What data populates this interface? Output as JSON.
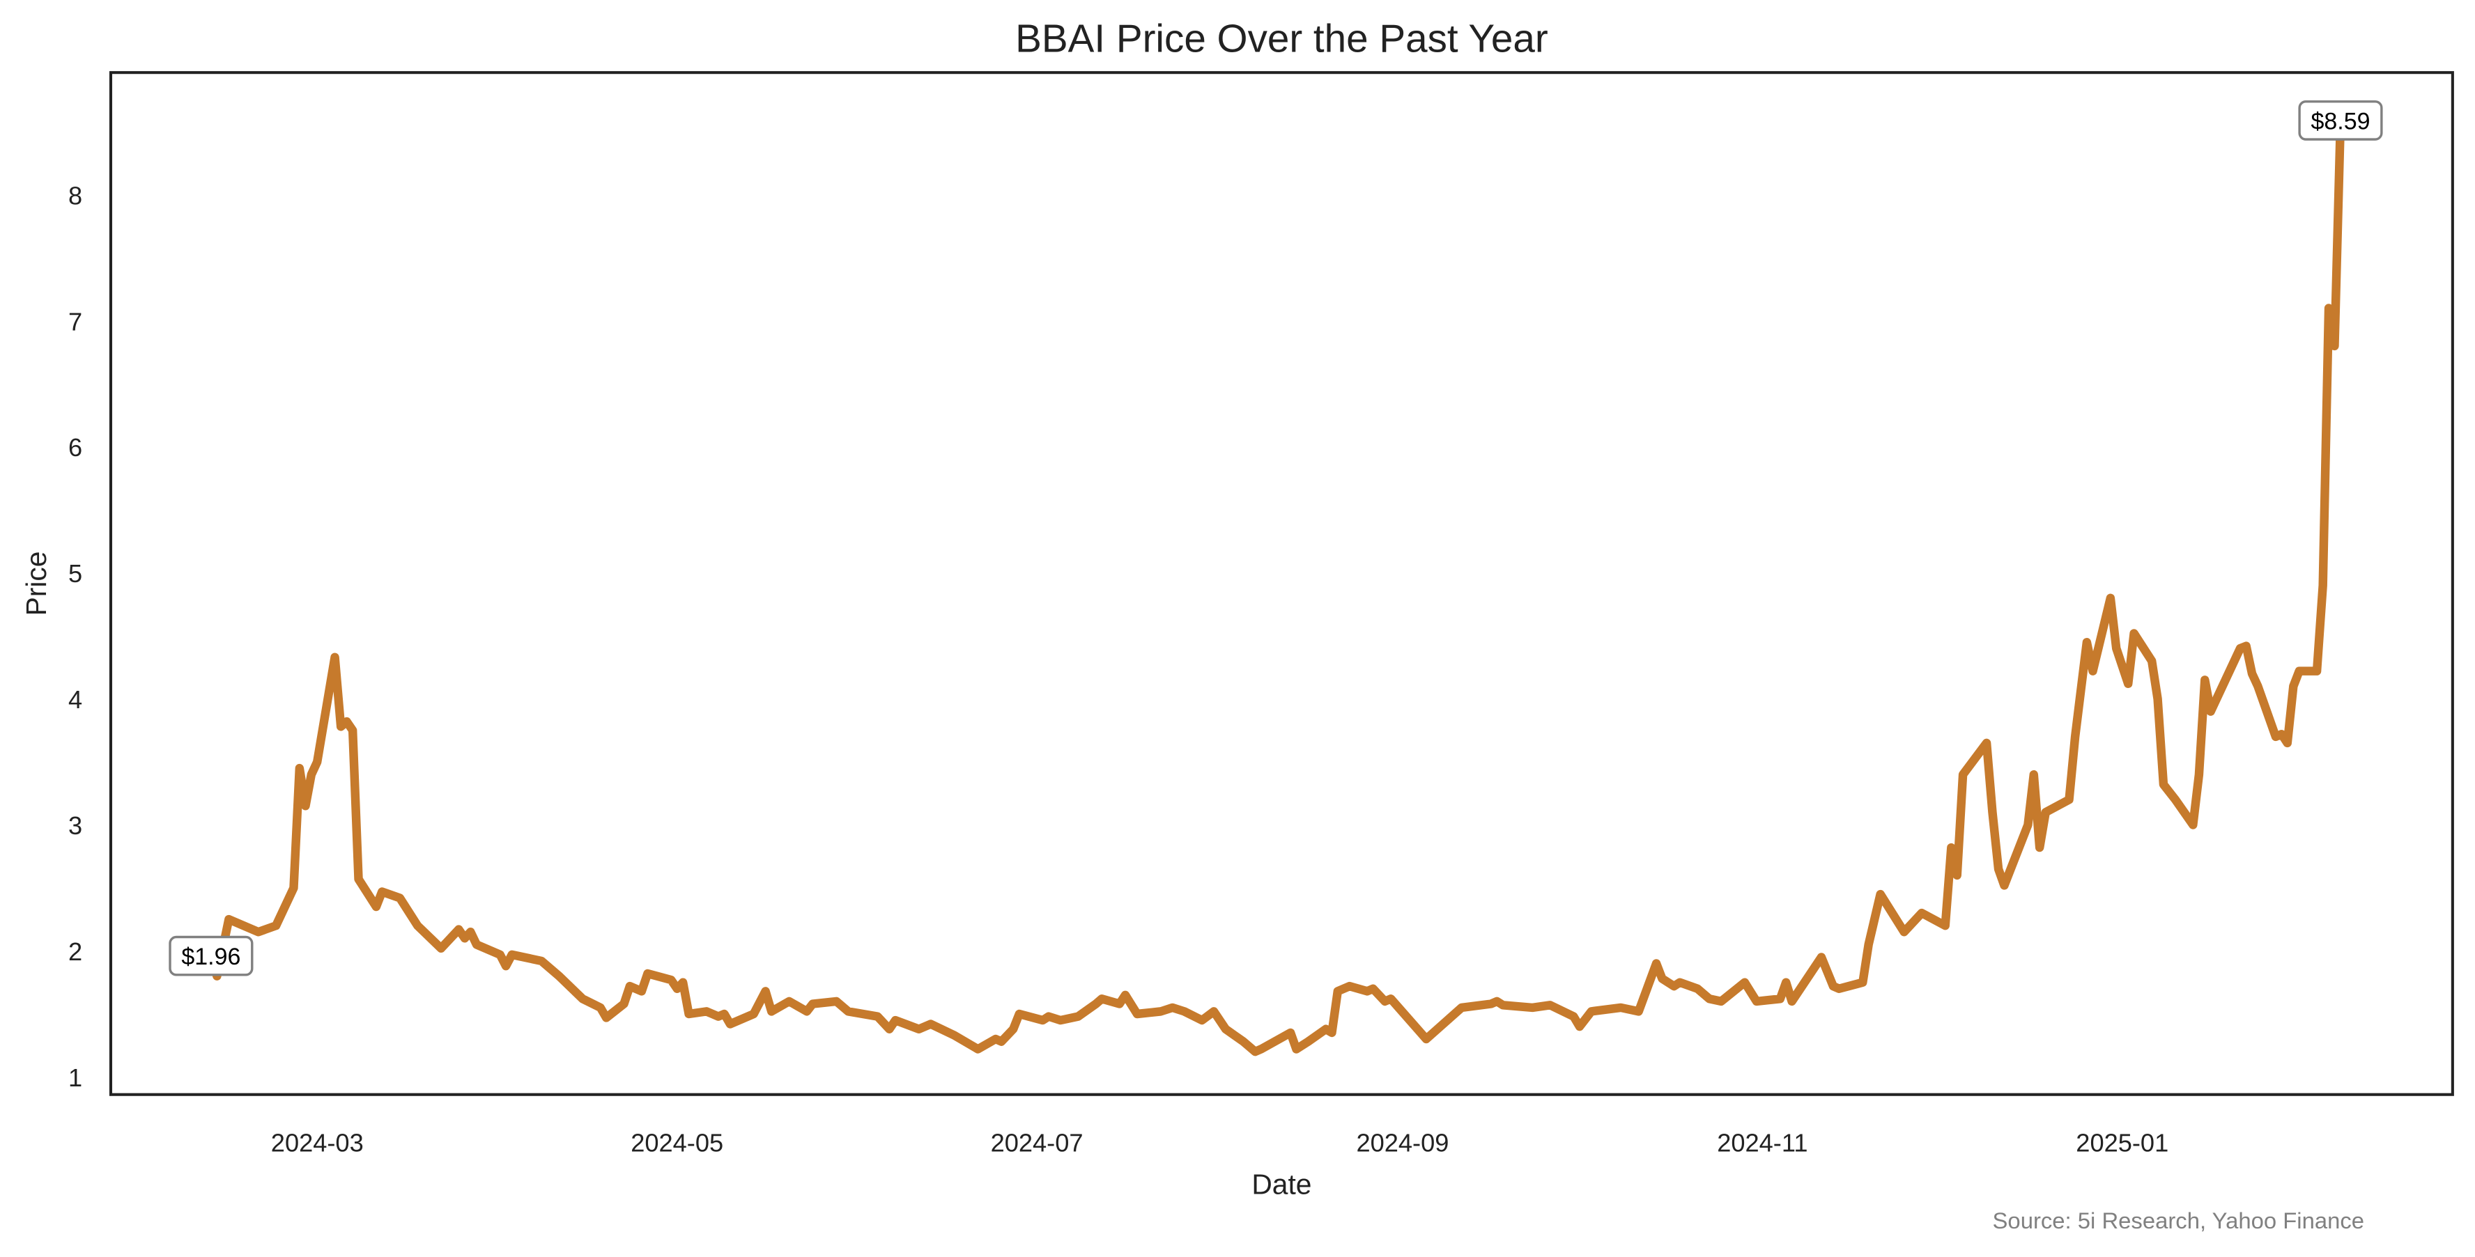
{
  "chart_data": {
    "type": "line",
    "title": "BBAI Price Over the Past Year",
    "xlabel": "Date",
    "ylabel": "Price",
    "source": "Source: 5i Research, Yahoo Finance",
    "ylim": [
      0.86,
      8.97
    ],
    "xlim": [
      "2024-01-26",
      "2025-02-26"
    ],
    "yticks": [
      1,
      2,
      3,
      4,
      5,
      6,
      7,
      8
    ],
    "xticks": [
      "2024-03",
      "2024-05",
      "2024-07",
      "2024-09",
      "2024-11",
      "2025-01"
    ],
    "grid": false,
    "line_color": "#c67a2c",
    "annotations": [
      {
        "label": "$1.96",
        "date": "2024-02-12",
        "value": 1.96
      },
      {
        "label": "$8.59",
        "date": "2025-02-07",
        "value": 8.59
      }
    ],
    "series": [
      {
        "name": "BBAI",
        "points": [
          [
            "2024-02-12",
            1.96
          ],
          [
            "2024-02-13",
            1.8
          ],
          [
            "2024-02-15",
            2.25
          ],
          [
            "2024-02-20",
            2.15
          ],
          [
            "2024-02-23",
            2.2
          ],
          [
            "2024-02-26",
            2.5
          ],
          [
            "2024-02-27",
            3.45
          ],
          [
            "2024-02-28",
            3.15
          ],
          [
            "2024-02-29",
            3.4
          ],
          [
            "2024-03-01",
            3.5
          ],
          [
            "2024-03-04",
            4.33
          ],
          [
            "2024-03-05",
            3.78
          ],
          [
            "2024-03-06",
            3.82
          ],
          [
            "2024-03-07",
            3.75
          ],
          [
            "2024-03-08",
            2.57
          ],
          [
            "2024-03-11",
            2.35
          ],
          [
            "2024-03-12",
            2.47
          ],
          [
            "2024-03-15",
            2.42
          ],
          [
            "2024-03-18",
            2.2
          ],
          [
            "2024-03-22",
            2.02
          ],
          [
            "2024-03-25",
            2.17
          ],
          [
            "2024-03-26",
            2.1
          ],
          [
            "2024-03-27",
            2.15
          ],
          [
            "2024-03-28",
            2.05
          ],
          [
            "2024-04-01",
            1.97
          ],
          [
            "2024-04-02",
            1.88
          ],
          [
            "2024-04-03",
            1.97
          ],
          [
            "2024-04-08",
            1.92
          ],
          [
            "2024-04-11",
            1.8
          ],
          [
            "2024-04-15",
            1.62
          ],
          [
            "2024-04-18",
            1.55
          ],
          [
            "2024-04-19",
            1.47
          ],
          [
            "2024-04-22",
            1.58
          ],
          [
            "2024-04-23",
            1.72
          ],
          [
            "2024-04-25",
            1.68
          ],
          [
            "2024-04-26",
            1.82
          ],
          [
            "2024-04-30",
            1.77
          ],
          [
            "2024-05-01",
            1.7
          ],
          [
            "2024-05-02",
            1.75
          ],
          [
            "2024-05-03",
            1.5
          ],
          [
            "2024-05-06",
            1.52
          ],
          [
            "2024-05-08",
            1.48
          ],
          [
            "2024-05-09",
            1.5
          ],
          [
            "2024-05-10",
            1.42
          ],
          [
            "2024-05-14",
            1.5
          ],
          [
            "2024-05-16",
            1.68
          ],
          [
            "2024-05-17",
            1.52
          ],
          [
            "2024-05-20",
            1.6
          ],
          [
            "2024-05-23",
            1.52
          ],
          [
            "2024-05-24",
            1.58
          ],
          [
            "2024-05-28",
            1.6
          ],
          [
            "2024-05-30",
            1.52
          ],
          [
            "2024-06-04",
            1.48
          ],
          [
            "2024-06-06",
            1.38
          ],
          [
            "2024-06-07",
            1.45
          ],
          [
            "2024-06-11",
            1.38
          ],
          [
            "2024-06-13",
            1.42
          ],
          [
            "2024-06-17",
            1.33
          ],
          [
            "2024-06-21",
            1.22
          ],
          [
            "2024-06-24",
            1.3
          ],
          [
            "2024-06-25",
            1.28
          ],
          [
            "2024-06-27",
            1.38
          ],
          [
            "2024-06-28",
            1.5
          ],
          [
            "2024-07-02",
            1.45
          ],
          [
            "2024-07-03",
            1.48
          ],
          [
            "2024-07-05",
            1.45
          ],
          [
            "2024-07-08",
            1.48
          ],
          [
            "2024-07-11",
            1.58
          ],
          [
            "2024-07-12",
            1.62
          ],
          [
            "2024-07-15",
            1.58
          ],
          [
            "2024-07-16",
            1.65
          ],
          [
            "2024-07-18",
            1.5
          ],
          [
            "2024-07-22",
            1.52
          ],
          [
            "2024-07-24",
            1.55
          ],
          [
            "2024-07-26",
            1.52
          ],
          [
            "2024-07-29",
            1.45
          ],
          [
            "2024-07-31",
            1.52
          ],
          [
            "2024-08-02",
            1.38
          ],
          [
            "2024-08-05",
            1.28
          ],
          [
            "2024-08-07",
            1.2
          ],
          [
            "2024-08-08",
            1.22
          ],
          [
            "2024-08-13",
            1.35
          ],
          [
            "2024-08-14",
            1.22
          ],
          [
            "2024-08-16",
            1.28
          ],
          [
            "2024-08-19",
            1.38
          ],
          [
            "2024-08-20",
            1.35
          ],
          [
            "2024-08-21",
            1.68
          ],
          [
            "2024-08-23",
            1.72
          ],
          [
            "2024-08-26",
            1.68
          ],
          [
            "2024-08-27",
            1.7
          ],
          [
            "2024-08-29",
            1.6
          ],
          [
            "2024-08-30",
            1.62
          ],
          [
            "2024-09-05",
            1.3
          ],
          [
            "2024-09-11",
            1.55
          ],
          [
            "2024-09-16",
            1.58
          ],
          [
            "2024-09-17",
            1.6
          ],
          [
            "2024-09-18",
            1.57
          ],
          [
            "2024-09-23",
            1.55
          ],
          [
            "2024-09-26",
            1.57
          ],
          [
            "2024-09-30",
            1.48
          ],
          [
            "2024-10-01",
            1.4
          ],
          [
            "2024-10-03",
            1.52
          ],
          [
            "2024-10-08",
            1.55
          ],
          [
            "2024-10-11",
            1.52
          ],
          [
            "2024-10-14",
            1.9
          ],
          [
            "2024-10-15",
            1.78
          ],
          [
            "2024-10-17",
            1.72
          ],
          [
            "2024-10-18",
            1.75
          ],
          [
            "2024-10-21",
            1.7
          ],
          [
            "2024-10-23",
            1.62
          ],
          [
            "2024-10-25",
            1.6
          ],
          [
            "2024-10-29",
            1.75
          ],
          [
            "2024-10-31",
            1.6
          ],
          [
            "2024-11-04",
            1.62
          ],
          [
            "2024-11-05",
            1.75
          ],
          [
            "2024-11-06",
            1.6
          ],
          [
            "2024-11-11",
            1.95
          ],
          [
            "2024-11-13",
            1.72
          ],
          [
            "2024-11-14",
            1.7
          ],
          [
            "2024-11-18",
            1.75
          ],
          [
            "2024-11-19",
            2.05
          ],
          [
            "2024-11-21",
            2.45
          ],
          [
            "2024-11-25",
            2.15
          ],
          [
            "2024-11-28",
            2.3
          ],
          [
            "2024-12-02",
            2.2
          ],
          [
            "2024-12-03",
            2.82
          ],
          [
            "2024-12-04",
            2.6
          ],
          [
            "2024-12-05",
            3.4
          ],
          [
            "2024-12-09",
            3.65
          ],
          [
            "2024-12-10",
            3.1
          ],
          [
            "2024-12-11",
            2.65
          ],
          [
            "2024-12-12",
            2.52
          ],
          [
            "2024-12-16",
            3.0
          ],
          [
            "2024-12-17",
            3.4
          ],
          [
            "2024-12-18",
            2.82
          ],
          [
            "2024-12-19",
            3.1
          ],
          [
            "2024-12-23",
            3.2
          ],
          [
            "2024-12-24",
            3.7
          ],
          [
            "2024-12-26",
            4.45
          ],
          [
            "2024-12-27",
            4.22
          ],
          [
            "2024-12-30",
            4.8
          ],
          [
            "2024-12-31",
            4.4
          ],
          [
            "2025-01-02",
            4.12
          ],
          [
            "2025-01-03",
            4.52
          ],
          [
            "2025-01-06",
            4.3
          ],
          [
            "2025-01-07",
            4.0
          ],
          [
            "2025-01-08",
            3.32
          ],
          [
            "2025-01-10",
            3.2
          ],
          [
            "2025-01-13",
            3.0
          ],
          [
            "2025-01-14",
            3.4
          ],
          [
            "2025-01-15",
            4.15
          ],
          [
            "2025-01-16",
            3.9
          ],
          [
            "2025-01-21",
            4.4
          ],
          [
            "2025-01-22",
            4.42
          ],
          [
            "2025-01-23",
            4.2
          ],
          [
            "2025-01-24",
            4.1
          ],
          [
            "2025-01-27",
            3.7
          ],
          [
            "2025-01-28",
            3.72
          ],
          [
            "2025-01-29",
            3.65
          ],
          [
            "2025-01-30",
            4.1
          ],
          [
            "2025-01-31",
            4.22
          ],
          [
            "2025-02-03",
            4.22
          ],
          [
            "2025-02-04",
            4.9
          ],
          [
            "2025-02-05",
            7.1
          ],
          [
            "2025-02-06",
            6.8
          ],
          [
            "2025-02-07",
            8.59
          ]
        ]
      }
    ]
  }
}
